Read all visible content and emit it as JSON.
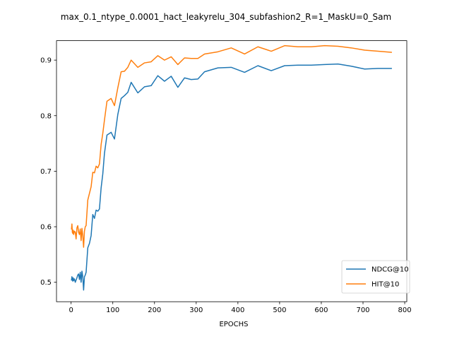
{
  "chart_data": {
    "type": "line",
    "title": "max_0.1_ntype_0.0001_hact_leakyrelu_304_subfashion2_R=1_MaskU=0_Sam",
    "xlabel": "EPOCHS",
    "ylabel": "",
    "xlim": [
      -35,
      805
    ],
    "ylim": [
      0.465,
      0.935
    ],
    "xticks": [
      0,
      100,
      200,
      300,
      400,
      500,
      600,
      700,
      800
    ],
    "yticks": [
      0.5,
      0.6,
      0.7,
      0.8,
      0.9
    ],
    "grid": false,
    "legend_position": "lower-right",
    "series": [
      {
        "name": "NDCG@10",
        "color": "#1f77b4",
        "x": [
          1,
          2,
          3,
          4,
          5,
          6,
          8,
          10,
          12,
          14,
          16,
          18,
          20,
          22,
          24,
          26,
          28,
          30,
          32,
          34,
          36,
          40,
          44,
          48,
          52,
          56,
          60,
          64,
          68,
          72,
          76,
          80,
          86,
          96,
          104,
          112,
          120,
          128,
          136,
          144,
          160,
          176,
          192,
          208,
          224,
          240,
          256,
          272,
          288,
          304,
          320,
          352,
          384,
          416,
          448,
          480,
          512,
          544,
          576,
          608,
          640,
          672,
          704,
          736,
          768
        ],
        "y": [
          0.504,
          0.51,
          0.505,
          0.502,
          0.508,
          0.503,
          0.506,
          0.5,
          0.504,
          0.508,
          0.513,
          0.515,
          0.505,
          0.518,
          0.5,
          0.52,
          0.51,
          0.486,
          0.51,
          0.513,
          0.518,
          0.562,
          0.57,
          0.584,
          0.622,
          0.615,
          0.63,
          0.628,
          0.632,
          0.67,
          0.695,
          0.732,
          0.765,
          0.77,
          0.758,
          0.802,
          0.831,
          0.836,
          0.842,
          0.86,
          0.841,
          0.852,
          0.854,
          0.872,
          0.862,
          0.871,
          0.851,
          0.868,
          0.865,
          0.866,
          0.879,
          0.886,
          0.887,
          0.878,
          0.89,
          0.881,
          0.89,
          0.891,
          0.891,
          0.892,
          0.893,
          0.889,
          0.884,
          0.885,
          0.885
        ]
      },
      {
        "name": "HIT@10",
        "color": "#ff7f0e",
        "x": [
          1,
          2,
          3,
          4,
          5,
          6,
          8,
          10,
          12,
          14,
          16,
          18,
          20,
          22,
          24,
          26,
          28,
          30,
          32,
          34,
          36,
          40,
          44,
          48,
          52,
          56,
          60,
          64,
          68,
          72,
          76,
          80,
          86,
          96,
          104,
          112,
          120,
          128,
          136,
          144,
          160,
          176,
          192,
          208,
          224,
          240,
          256,
          272,
          288,
          304,
          320,
          352,
          384,
          416,
          448,
          480,
          512,
          544,
          576,
          608,
          640,
          672,
          704,
          736,
          768
        ],
        "y": [
          0.596,
          0.605,
          0.59,
          0.588,
          0.594,
          0.586,
          0.592,
          0.59,
          0.578,
          0.598,
          0.602,
          0.59,
          0.586,
          0.596,
          0.575,
          0.597,
          0.584,
          0.563,
          0.592,
          0.6,
          0.602,
          0.648,
          0.66,
          0.672,
          0.698,
          0.697,
          0.709,
          0.706,
          0.713,
          0.748,
          0.768,
          0.792,
          0.826,
          0.831,
          0.818,
          0.85,
          0.879,
          0.88,
          0.887,
          0.9,
          0.887,
          0.895,
          0.897,
          0.908,
          0.9,
          0.906,
          0.892,
          0.904,
          0.903,
          0.903,
          0.911,
          0.915,
          0.922,
          0.911,
          0.924,
          0.916,
          0.926,
          0.924,
          0.924,
          0.926,
          0.925,
          0.922,
          0.918,
          0.916,
          0.914
        ]
      }
    ]
  }
}
